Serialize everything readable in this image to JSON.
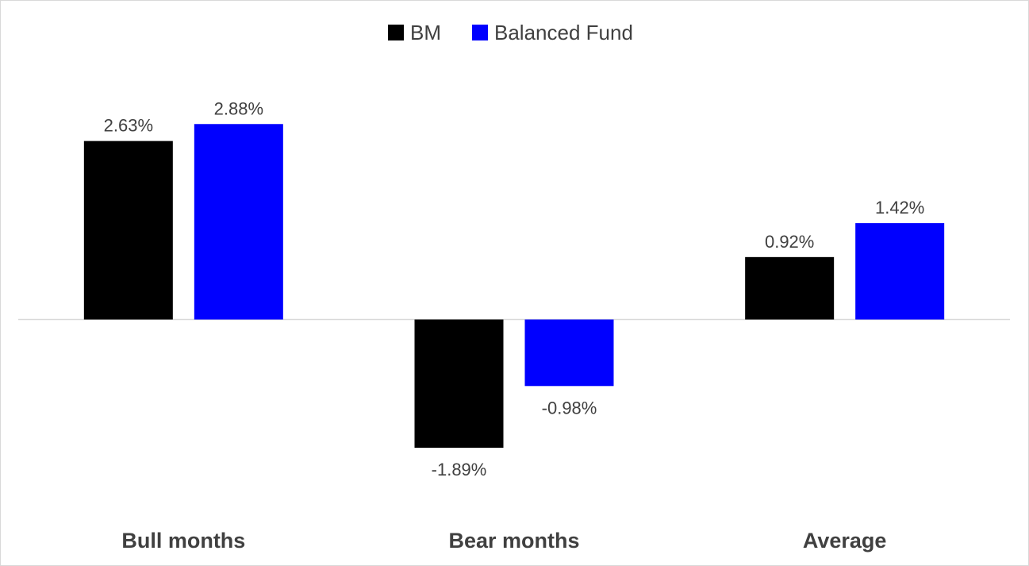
{
  "chart_data": {
    "type": "bar",
    "categories": [
      "Bull months",
      "Bear months",
      "Average"
    ],
    "series": [
      {
        "name": "BM",
        "color": "#000000",
        "values": [
          2.63,
          -1.89,
          0.92
        ],
        "labels": [
          "2.63%",
          "-1.89%",
          "0.92%"
        ]
      },
      {
        "name": "Balanced Fund",
        "color": "#0000ff",
        "values": [
          2.88,
          -0.98,
          1.42
        ],
        "labels": [
          "2.88%",
          "-0.98%",
          "1.42%"
        ]
      }
    ],
    "value_unit": "%",
    "ylim": [
      -3.8,
      3.8
    ],
    "legend_position": "top-center",
    "grid": false,
    "axis_line_color": "#d9d9d9"
  }
}
